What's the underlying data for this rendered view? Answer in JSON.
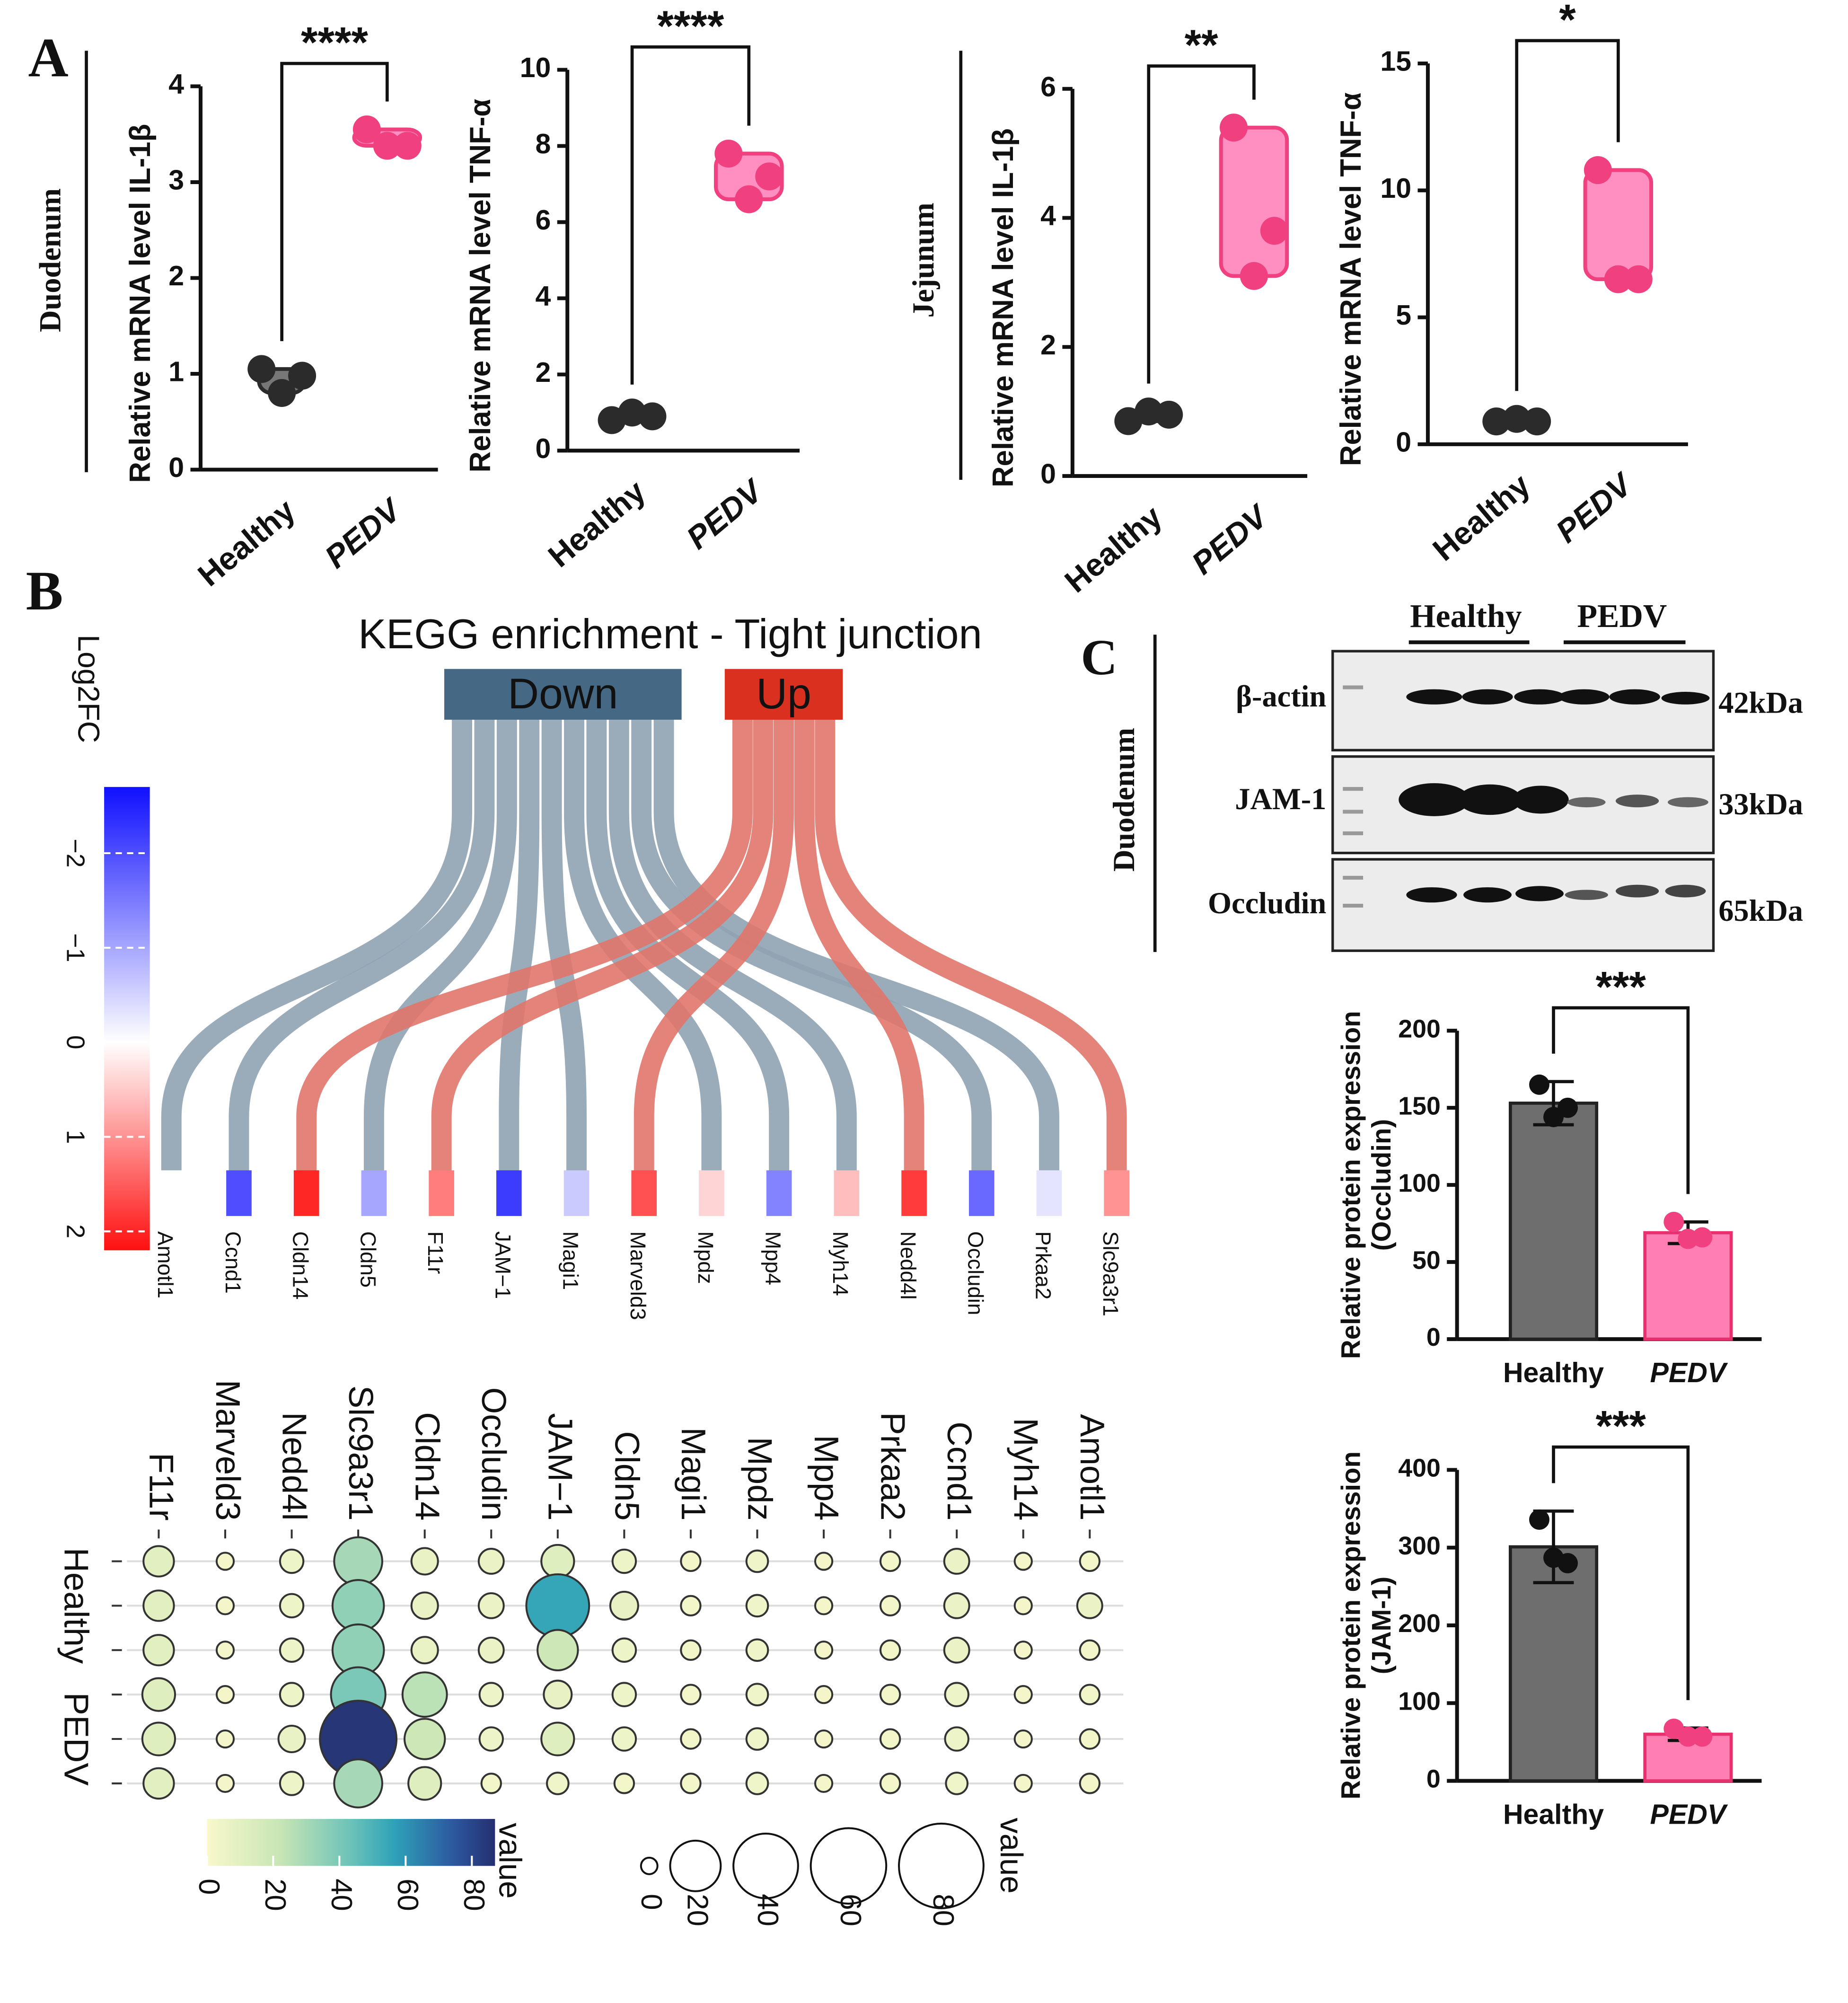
{
  "panel_labels": [
    "A",
    "B",
    "C"
  ],
  "tissue_labels": [
    "Duodenum",
    "Jejunum"
  ],
  "blot": {
    "tissue": "Duodenum",
    "groups": [
      "Healthy",
      "PEDV"
    ],
    "proteins": [
      "β-actin",
      "JAM-1",
      "Occludin"
    ],
    "sizes": [
      "42kDa",
      "33kDa",
      "65kDa"
    ]
  },
  "chart_data": [
    {
      "type": "violin",
      "ylabel": "Relative mRNA level IL-1β",
      "categories": [
        "Healthy",
        "PEDV"
      ],
      "points": [
        [
          1.05,
          0.98,
          0.8
        ],
        [
          3.55,
          3.38,
          3.38
        ]
      ],
      "colors": [
        "#2b2b2b",
        "#f0407f"
      ],
      "ylim": [
        0,
        4
      ],
      "yticks": [
        0,
        1,
        2,
        3,
        4
      ],
      "significance": "****"
    },
    {
      "type": "violin",
      "ylabel": "Relative mRNA level TNF-α",
      "categories": [
        "Healthy",
        "PEDV"
      ],
      "points": [
        [
          0.8,
          0.9,
          1.0
        ],
        [
          7.8,
          7.2,
          6.6
        ]
      ],
      "colors": [
        "#2b2b2b",
        "#f0407f"
      ],
      "ylim": [
        0,
        10
      ],
      "yticks": [
        0,
        2,
        4,
        6,
        8,
        10
      ],
      "significance": "****"
    },
    {
      "type": "violin",
      "ylabel": "Relative mRNA level IL-1β",
      "categories": [
        "Healthy",
        "PEDV"
      ],
      "points": [
        [
          0.85,
          0.95,
          1.0
        ],
        [
          5.4,
          3.8,
          3.1
        ]
      ],
      "colors": [
        "#2b2b2b",
        "#f0407f"
      ],
      "ylim": [
        0,
        6
      ],
      "yticks": [
        0,
        2,
        4,
        6
      ],
      "significance": "**"
    },
    {
      "type": "violin",
      "ylabel": "Relative mRNA level TNF-α",
      "categories": [
        "Healthy",
        "PEDV"
      ],
      "points": [
        [
          0.9,
          0.9,
          1.0
        ],
        [
          10.8,
          6.5,
          6.5
        ]
      ],
      "colors": [
        "#2b2b2b",
        "#f0407f"
      ],
      "ylim": [
        0,
        15
      ],
      "yticks": [
        0,
        5,
        10,
        15
      ],
      "significance": "*"
    },
    {
      "type": "sankey",
      "title": "KEGG enrichment - Tight junction",
      "categories": [
        "Amotl1",
        "Ccnd1",
        "Cldn14",
        "Cldn5",
        "F11r",
        "JAM−1",
        "Magi1",
        "Marveld3",
        "Mpdz",
        "Mpp4",
        "Myh14",
        "Nedd4l",
        "Occludin",
        "Prkaa2",
        "Slc9a3r1"
      ],
      "values": [
        0,
        -2,
        2,
        -1,
        1.2,
        -2.2,
        -0.6,
        1.6,
        0.4,
        -1.4,
        0.6,
        1.8,
        -1.7,
        -0.3,
        1.0
      ],
      "sources": [
        {
          "name": "Down",
          "color": "#456985",
          "link_color": "#8fa3b2",
          "genes": [
            "Amotl1",
            "Ccnd1",
            "Cldn5",
            "JAM−1",
            "Magi1",
            "Mpdz",
            "Mpp4",
            "Myh14",
            "Occludin",
            "Prkaa2"
          ]
        },
        {
          "name": "Up",
          "color": "#d9301f",
          "link_color": "#e0756a",
          "genes": [
            "Cldn14",
            "F11r",
            "Marveld3",
            "Nedd4l",
            "Slc9a3r1"
          ]
        }
      ],
      "highlight": [
        "JAM−1",
        "Occludin"
      ],
      "highlight_color": "#ff0000",
      "colorbar": {
        "title": "Log2FC",
        "lim": [
          -2.7,
          2.2
        ],
        "ticks": [
          {
            "value": -2,
            "label": "−2"
          },
          {
            "value": -1,
            "label": "−1"
          },
          0,
          1,
          2
        ]
      }
    },
    {
      "type": "dotplot",
      "categories": [
        "F11r",
        "Marveld3",
        "Nedd4l",
        "Slc9a3r1",
        "Cldn14",
        "Occludin",
        "JAM−1",
        "Cldn5",
        "Magi1",
        "Mpdz",
        "Mpp4",
        "Prkaa2",
        "Ccnd1",
        "Myh14",
        "Amotl1"
      ],
      "row_labels": [
        "Healthy",
        "PEDV"
      ],
      "values": [
        [
          10,
          10,
          10,
          12,
          12,
          10
        ],
        [
          2,
          2,
          2,
          2,
          2,
          2
        ],
        [
          5,
          5,
          5,
          5,
          7,
          5
        ],
        [
          30,
          35,
          35,
          40,
          85,
          30
        ],
        [
          7,
          7,
          7,
          25,
          20,
          12
        ],
        [
          6,
          6,
          6,
          5,
          5,
          3
        ],
        [
          12,
          55,
          20,
          8,
          12,
          4
        ],
        [
          5,
          8,
          5,
          5,
          5,
          3
        ],
        [
          3,
          3,
          3,
          3,
          3,
          3
        ],
        [
          4,
          4,
          4,
          4,
          4,
          4
        ],
        [
          2,
          2,
          2,
          2,
          2,
          2
        ],
        [
          3,
          3,
          3,
          3,
          3,
          3
        ],
        [
          6,
          6,
          6,
          5,
          5,
          4
        ],
        [
          2,
          2,
          2,
          2,
          2,
          2
        ],
        [
          3,
          6,
          3,
          3,
          3,
          3
        ]
      ],
      "highlight": [
        "Occludin",
        "JAM−1"
      ],
      "highlight_color": "#ff0000",
      "color_title": "value",
      "clim": [
        0,
        87
      ],
      "cticks": [
        0,
        20,
        40,
        60,
        80
      ],
      "size_title": "value",
      "size_ticks": [
        0,
        20,
        40,
        60,
        80
      ]
    },
    {
      "type": "bar",
      "ylabel": [
        "Relative protein expression",
        "(Occludin)"
      ],
      "categories": [
        "Healthy",
        "PEDV"
      ],
      "values": [
        153,
        69
      ],
      "errors": [
        14,
        7
      ],
      "points": [
        [
          165,
          150,
          144
        ],
        [
          76,
          66,
          65
        ]
      ],
      "colors": [
        "#6e6e6e",
        "#ff7fb3"
      ],
      "ylim": [
        0,
        200
      ],
      "yticks": [
        0,
        50,
        100,
        150,
        200
      ],
      "significance": "***"
    },
    {
      "type": "bar",
      "ylabel": [
        "Relative protein expression",
        "(JAM-1)"
      ],
      "categories": [
        "Healthy",
        "PEDV"
      ],
      "values": [
        301,
        60
      ],
      "errors": [
        46,
        8
      ],
      "points": [
        [
          336,
          280,
          287
        ],
        [
          67,
          57,
          57
        ]
      ],
      "colors": [
        "#6e6e6e",
        "#ff7fb3"
      ],
      "ylim": [
        0,
        400
      ],
      "yticks": [
        0,
        100,
        200,
        300,
        400
      ],
      "significance": "***"
    }
  ]
}
